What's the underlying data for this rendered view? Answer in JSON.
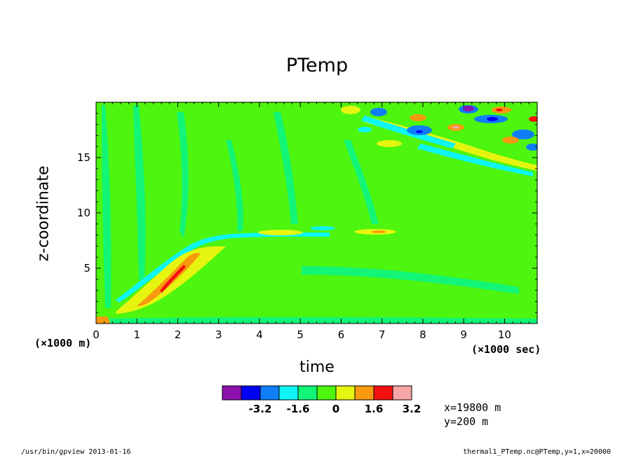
{
  "chart_data": {
    "type": "heatmap",
    "title": "PTemp",
    "xlabel": "time",
    "ylabel": "z-coordinate",
    "x_unit_label": "(×1000 sec)",
    "y_unit_label": "(×1000 m)",
    "xlim": [
      0,
      10.8
    ],
    "ylim": [
      0,
      20
    ],
    "x_ticks": [
      "0",
      "1",
      "2",
      "3",
      "4",
      "5",
      "6",
      "7",
      "8",
      "9",
      "10"
    ],
    "y_ticks": [
      "5",
      "10",
      "15"
    ],
    "colorbar": {
      "colors": [
        "#8d12ad",
        "#0000f4",
        "#0f7ef6",
        "#0ff5f5",
        "#12f576",
        "#4df50f",
        "#e5f50f",
        "#f79a0f",
        "#f5100f",
        "#f5a5a5"
      ],
      "labels": [
        "-3.2",
        "-1.6",
        "0",
        "1.6",
        "3.2"
      ]
    },
    "notes": [
      "x=19800  m",
      "y=200  m"
    ],
    "footer_left": "/usr/bin/gpview  2013-01-16",
    "footer_right": "thermal1_PTemp.nc@PTemp,y=1,x=20000"
  },
  "colors": {
    "green": "#4df50f",
    "teal": "#12f576",
    "cyan": "#0ff5f5",
    "yellow": "#e5f50f",
    "orange": "#f79a0f",
    "red": "#f5100f",
    "pink": "#f5a5a5",
    "blue": "#0f7ef6",
    "navy": "#0000f4",
    "purple": "#8d12ad"
  }
}
